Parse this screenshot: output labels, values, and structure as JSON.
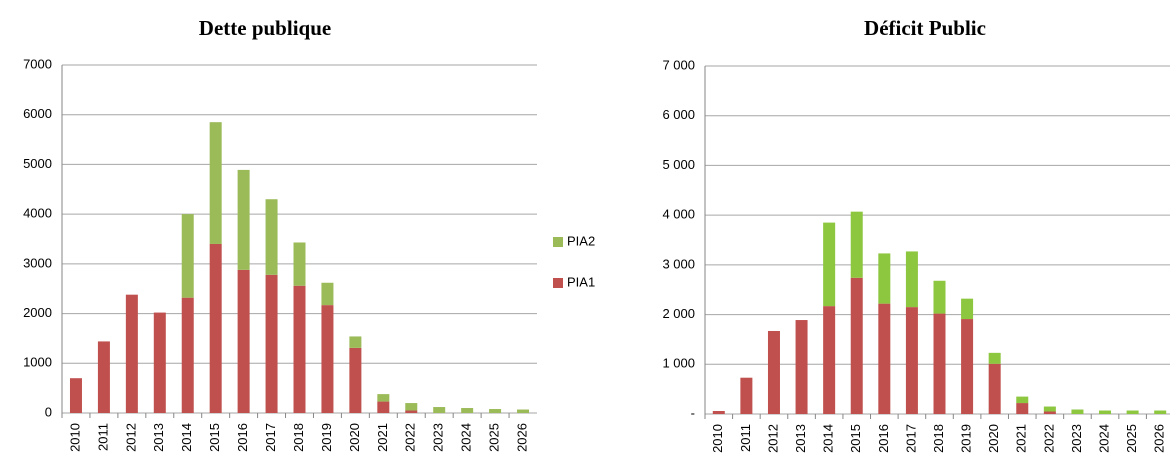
{
  "chart_data": [
    {
      "type": "stacked_bar",
      "title": "Dette publique",
      "categories": [
        "2010",
        "2011",
        "2012",
        "2013",
        "2014",
        "2015",
        "2016",
        "2017",
        "2018",
        "2019",
        "2020",
        "2021",
        "2022",
        "2023",
        "2024",
        "2025",
        "2026"
      ],
      "series": [
        {
          "name": "PIA1",
          "color": "#c0504d",
          "values": [
            700,
            1440,
            2380,
            2020,
            2320,
            3400,
            2880,
            2780,
            2560,
            2170,
            1310,
            230,
            50,
            0,
            0,
            0,
            0
          ]
        },
        {
          "name": "PIA2",
          "color": "#9bbb59",
          "values": [
            0,
            0,
            0,
            0,
            1680,
            2450,
            2010,
            1520,
            870,
            450,
            230,
            150,
            150,
            120,
            100,
            80,
            70
          ]
        }
      ],
      "ylim": [
        0,
        7000
      ],
      "yticks": [
        0,
        1000,
        2000,
        3000,
        4000,
        5000,
        6000,
        7000
      ],
      "grid": true,
      "legend": "right"
    },
    {
      "type": "stacked_bar",
      "title": "Déficit  Public",
      "categories": [
        "2010",
        "2011",
        "2012",
        "2013",
        "2014",
        "2015",
        "2016",
        "2017",
        "2018",
        "2019",
        "2020",
        "2021",
        "2022",
        "2023",
        "2024",
        "2025",
        "2026"
      ],
      "series": [
        {
          "color": "#c0504d",
          "values": [
            60,
            730,
            1670,
            1890,
            2170,
            2740,
            2220,
            2150,
            2020,
            1910,
            1010,
            220,
            50,
            0,
            0,
            0,
            0
          ]
        },
        {
          "color": "#8dc63f",
          "values": [
            0,
            0,
            0,
            0,
            1680,
            1330,
            1010,
            1120,
            660,
            410,
            220,
            130,
            100,
            90,
            70,
            70,
            70
          ]
        }
      ],
      "ylim": [
        0,
        7000
      ],
      "yticks": [
        {
          "value": 0,
          "label": "-"
        },
        {
          "value": 1000,
          "label": "1 000"
        },
        {
          "value": 2000,
          "label": "2 000"
        },
        {
          "value": 3000,
          "label": "3 000"
        },
        {
          "value": 4000,
          "label": "4 000"
        },
        {
          "value": 5000,
          "label": "5 000"
        },
        {
          "value": 6000,
          "label": "6 000"
        },
        {
          "value": 7000,
          "label": "7 000"
        }
      ],
      "grid": true
    }
  ]
}
